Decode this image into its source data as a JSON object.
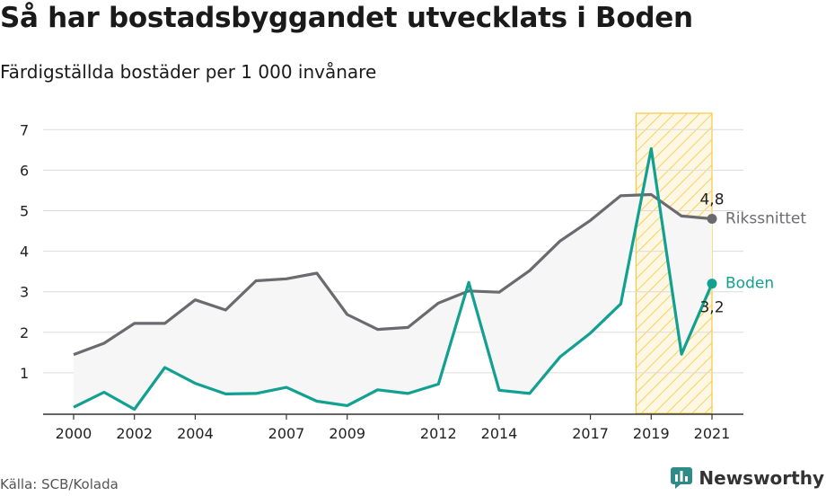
{
  "title": "Så har bostadsbyggandet utvecklats i Boden",
  "subtitle": "Färdigställda bostäder per 1 000 invånare",
  "source": "Källa: SCB/Kolada",
  "brand": {
    "name": "Newsworthy",
    "icon": "newsworthy-chat-icon"
  },
  "colors": {
    "boden": "#12a091",
    "riks": "#6b6a6e",
    "band_fill": "#f6f6f6",
    "highlight": "#f5c842"
  },
  "chart_data": {
    "type": "line",
    "title": "Så har bostadsbyggandet utvecklats i Boden",
    "ylabel": "",
    "xlabel": "",
    "ylim": [
      0,
      7.5
    ],
    "xlim": [
      2000,
      2021
    ],
    "y_ticks": [
      1,
      2,
      3,
      4,
      5,
      6,
      7
    ],
    "x_ticks": [
      "2000",
      "2002",
      "2004",
      "2007",
      "2009",
      "2012",
      "2014",
      "2017",
      "2019",
      "2021"
    ],
    "grid": true,
    "highlight_range": [
      2018.5,
      2021
    ],
    "x": [
      2000,
      2001,
      2002,
      2003,
      2004,
      2005,
      2006,
      2007,
      2008,
      2009,
      2010,
      2011,
      2012,
      2013,
      2014,
      2015,
      2016,
      2017,
      2018,
      2019,
      2020,
      2021
    ],
    "series": [
      {
        "name": "Rikssnittet",
        "color": "#6b6a6e",
        "values": [
          1.45,
          1.73,
          2.22,
          2.22,
          2.8,
          2.55,
          3.27,
          3.32,
          3.46,
          2.44,
          2.07,
          2.12,
          2.72,
          3.02,
          2.99,
          3.52,
          4.25,
          4.76,
          5.37,
          5.4,
          4.87,
          4.8
        ],
        "end_label": "4,8"
      },
      {
        "name": "Boden",
        "color": "#12a091",
        "values": [
          0.15,
          0.52,
          0.1,
          1.13,
          0.74,
          0.48,
          0.49,
          0.64,
          0.3,
          0.19,
          0.58,
          0.49,
          0.72,
          3.23,
          0.57,
          0.49,
          1.39,
          1.98,
          2.7,
          6.53,
          1.46,
          3.2
        ],
        "end_label": "3,2"
      }
    ]
  }
}
